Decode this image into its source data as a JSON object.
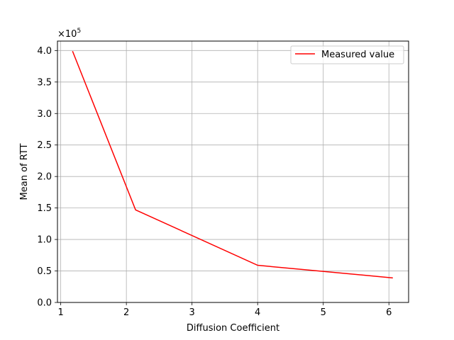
{
  "chart_data": {
    "type": "line",
    "title": "",
    "xlabel": "Diffusion Coefficient",
    "ylabel": "Mean of RTT",
    "offset_text": "×10",
    "offset_exponent": "5",
    "xlim": [
      0.95,
      6.3
    ],
    "ylim": [
      0,
      4.15
    ],
    "x_ticks": [
      1,
      2,
      3,
      4,
      5,
      6
    ],
    "x_tick_labels": [
      "1",
      "2",
      "3",
      "4",
      "5",
      "6"
    ],
    "y_ticks": [
      0,
      0.5,
      1.0,
      1.5,
      2.0,
      2.5,
      3.0,
      3.5,
      4.0
    ],
    "y_tick_labels": [
      "0.0",
      "0.5",
      "1.0",
      "1.5",
      "2.0",
      "2.5",
      "3.0",
      "3.5",
      "4.0"
    ],
    "grid": true,
    "legend_position": "top-right",
    "series": [
      {
        "name": "Measured value",
        "color": "#ff0000",
        "x": [
          1.18,
          2.14,
          4.0,
          6.06
        ],
        "y": [
          3.99,
          1.47,
          0.59,
          0.39
        ]
      }
    ]
  }
}
